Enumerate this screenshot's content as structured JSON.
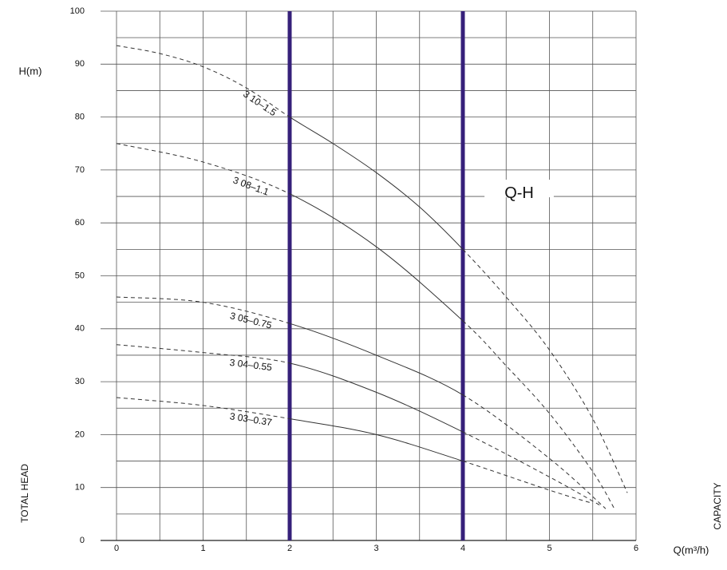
{
  "chart_data": {
    "type": "line",
    "x_label": "Q(m³/h)",
    "y_label": "H(m)",
    "y_side_label": "TOTAL HEAD",
    "x_side_label": "CAPACITY",
    "annotation": "Q-H",
    "xlim": [
      0,
      6
    ],
    "ylim": [
      0,
      100
    ],
    "xticks": [
      0,
      1,
      2,
      3,
      4,
      5,
      6
    ],
    "yticks": [
      0,
      10,
      20,
      30,
      40,
      50,
      60,
      70,
      80,
      90,
      100
    ],
    "x_minor_grid": [
      0.5,
      1.5,
      2.5,
      3.5,
      4.5,
      5.5
    ],
    "y_minor_grid": [
      5,
      15,
      25,
      35,
      45,
      55,
      65,
      75,
      85,
      95
    ],
    "grid": true,
    "operating_range": [
      2,
      4
    ],
    "operating_range_color": "#36207a",
    "series": [
      {
        "name": "3 10–1.5",
        "color": "#333333",
        "x": [
          0,
          0.5,
          1,
          1.5,
          2,
          2.5,
          3,
          3.5,
          4,
          4.5,
          5,
          5.5,
          5.9
        ],
        "values": [
          93.5,
          92,
          89.5,
          85.5,
          80,
          75,
          69.5,
          63,
          55,
          46,
          36,
          23,
          9
        ]
      },
      {
        "name": "3 08–1.1",
        "color": "#333333",
        "x": [
          0,
          1,
          2,
          3,
          4,
          4.5,
          5,
          5.5,
          5.75
        ],
        "values": [
          75,
          71.5,
          65.5,
          55.5,
          41.5,
          33,
          24,
          13,
          6
        ]
      },
      {
        "name": "3 05–0.75",
        "color": "#333333",
        "x": [
          0,
          1,
          2,
          3,
          4,
          5,
          5.65
        ],
        "values": [
          46,
          45,
          41,
          35,
          27.5,
          15.5,
          6
        ]
      },
      {
        "name": "3 04–0.55",
        "color": "#333333",
        "x": [
          0,
          1,
          2,
          3,
          4,
          5,
          5.6
        ],
        "values": [
          37,
          35.5,
          33.5,
          28,
          20.5,
          12,
          6.5
        ]
      },
      {
        "name": "3 03–0.37",
        "color": "#333333",
        "x": [
          0,
          1,
          2,
          3,
          4,
          5,
          5.5
        ],
        "values": [
          27,
          25.5,
          23,
          20,
          15,
          9.5,
          7
        ]
      }
    ]
  }
}
